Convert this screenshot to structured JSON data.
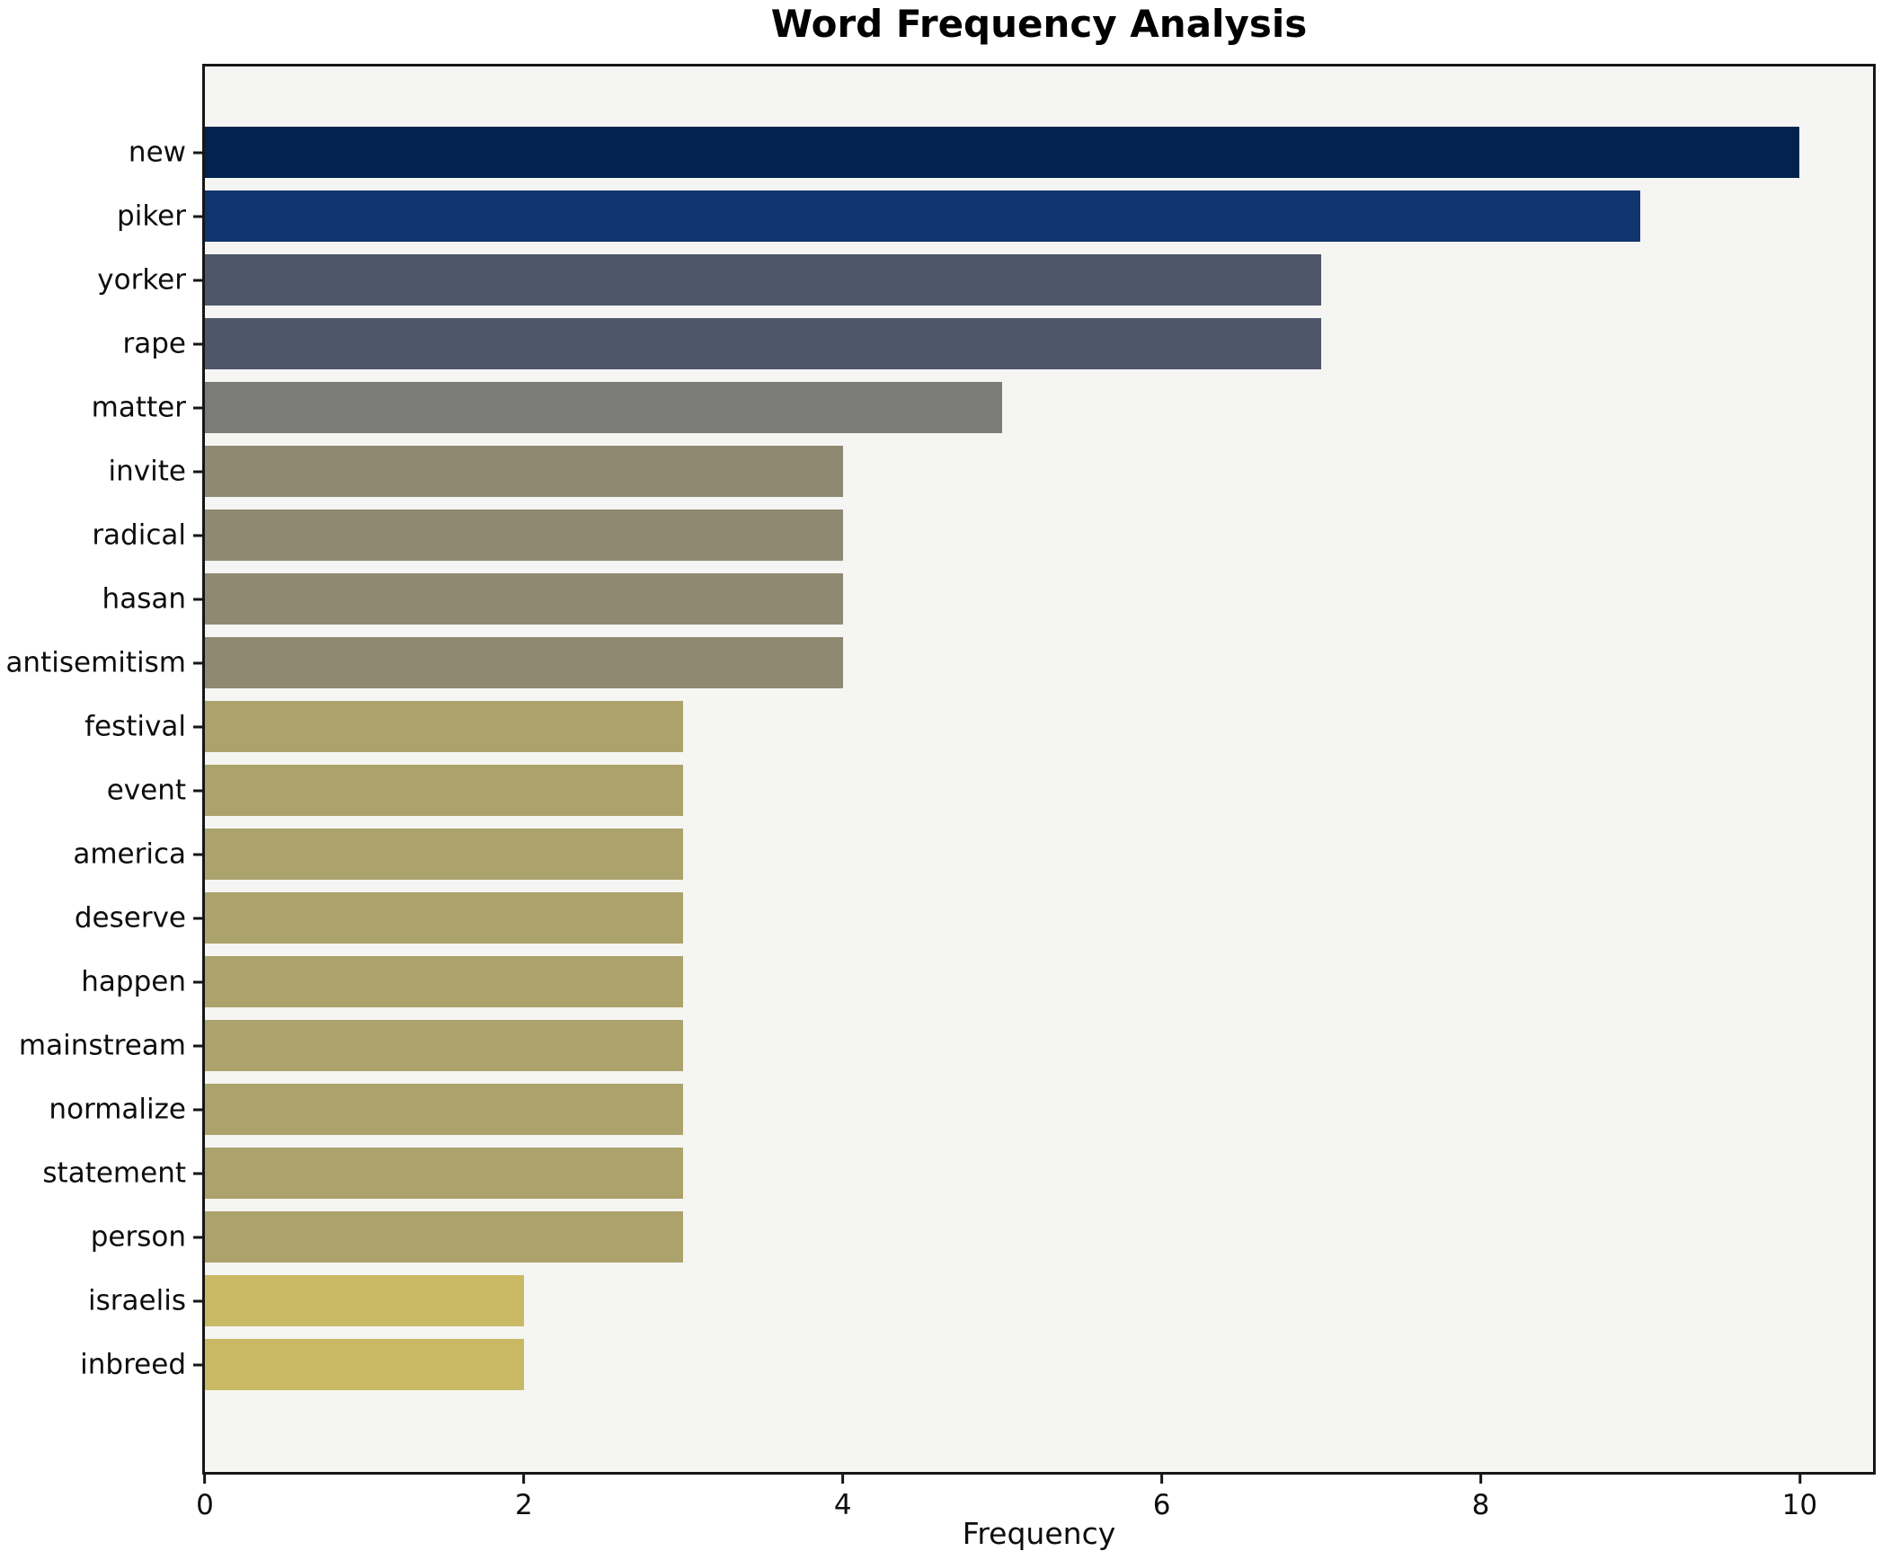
{
  "chart_data": {
    "type": "bar",
    "orientation": "horizontal",
    "title": "Word Frequency Analysis",
    "xlabel": "Frequency",
    "ylabel": "",
    "categories": [
      "new",
      "piker",
      "yorker",
      "rape",
      "matter",
      "invite",
      "radical",
      "hasan",
      "antisemitism",
      "festival",
      "event",
      "america",
      "deserve",
      "happen",
      "mainstream",
      "normalize",
      "statement",
      "person",
      "israelis",
      "inbreed"
    ],
    "values": [
      10,
      9,
      7,
      7,
      5,
      4,
      4,
      4,
      4,
      3,
      3,
      3,
      3,
      3,
      3,
      3,
      3,
      3,
      2,
      2
    ],
    "bar_colors": [
      "#02234e",
      "#10356e",
      "#4e566b",
      "#4e566b",
      "#7b7b79",
      "#8f8971",
      "#8f8971",
      "#8f8971",
      "#8f8971",
      "#aca26b",
      "#aca26b",
      "#aca26b",
      "#aca26b",
      "#aca26b",
      "#aca26b",
      "#aca26b",
      "#aca26b",
      "#aca26b",
      "#cab964",
      "#cab964"
    ],
    "xlim": [
      0,
      10.46
    ],
    "xticks": [
      0,
      2,
      4,
      6,
      8,
      10
    ],
    "grid": false,
    "legend": false,
    "plot_background": "#f5f5f3",
    "figure_background": "#ffffff",
    "spine_color": "#161616"
  }
}
